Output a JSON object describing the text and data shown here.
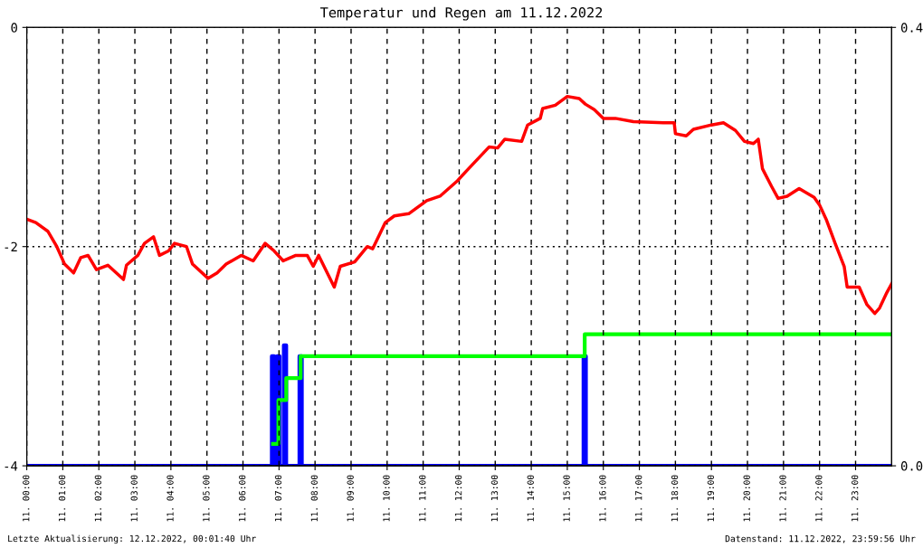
{
  "chart_data": {
    "type": "line",
    "title": "Temperatur und Regen am 11.12.2022",
    "xlim": [
      "2022-12-11T00:00",
      "2022-12-12T00:00"
    ],
    "xticks": [
      {
        "value": "2022-12-11T00:00",
        "label": "11. 00:00"
      },
      {
        "value": "2022-12-11T01:00",
        "label": "11. 01:00"
      },
      {
        "value": "2022-12-11T02:00",
        "label": "11. 02:00"
      },
      {
        "value": "2022-12-11T03:00",
        "label": "11. 03:00"
      },
      {
        "value": "2022-12-11T04:00",
        "label": "11. 04:00"
      },
      {
        "value": "2022-12-11T05:00",
        "label": "11. 05:00"
      },
      {
        "value": "2022-12-11T06:00",
        "label": "11. 06:00"
      },
      {
        "value": "2022-12-11T07:00",
        "label": "11. 07:00"
      },
      {
        "value": "2022-12-11T08:00",
        "label": "11. 08:00"
      },
      {
        "value": "2022-12-11T09:00",
        "label": "11. 09:00"
      },
      {
        "value": "2022-12-11T10:00",
        "label": "11. 10:00"
      },
      {
        "value": "2022-12-11T11:00",
        "label": "11. 11:00"
      },
      {
        "value": "2022-12-11T12:00",
        "label": "11. 12:00"
      },
      {
        "value": "2022-12-11T13:00",
        "label": "11. 13:00"
      },
      {
        "value": "2022-12-11T14:00",
        "label": "11. 14:00"
      },
      {
        "value": "2022-12-11T15:00",
        "label": "11. 15:00"
      },
      {
        "value": "2022-12-11T16:00",
        "label": "11. 16:00"
      },
      {
        "value": "2022-12-11T17:00",
        "label": "11. 17:00"
      },
      {
        "value": "2022-12-11T18:00",
        "label": "11. 18:00"
      },
      {
        "value": "2022-12-11T19:00",
        "label": "11. 19:00"
      },
      {
        "value": "2022-12-11T20:00",
        "label": "11. 20:00"
      },
      {
        "value": "2022-12-11T21:00",
        "label": "11. 21:00"
      },
      {
        "value": "2022-12-11T22:00",
        "label": "11. 22:00"
      },
      {
        "value": "2022-12-11T23:00",
        "label": "11. 23:00"
      }
    ],
    "ylim": [
      -4,
      0
    ],
    "yticks": [
      0,
      -2,
      -4
    ],
    "y2lim": [
      0,
      0.4
    ],
    "y2ticks": [
      {
        "value": 0,
        "label": "0.0"
      },
      {
        "value": 0.4,
        "label": "0.4"
      }
    ],
    "grid": true,
    "series": [
      {
        "color": "#ff0000",
        "x": [
          "2022-12-11T00:00",
          "2022-12-11T00:15",
          "2022-12-11T00:35",
          "2022-12-11T00:50",
          "2022-12-11T01:03",
          "2022-12-11T01:18",
          "2022-12-11T01:30",
          "2022-12-11T01:42",
          "2022-12-11T01:56",
          "2022-12-11T02:15",
          "2022-12-11T02:41",
          "2022-12-11T02:46",
          "2022-12-11T03:05",
          "2022-12-11T03:16",
          "2022-12-11T03:31",
          "2022-12-11T03:41",
          "2022-12-11T03:56",
          "2022-12-11T04:06",
          "2022-12-11T04:26",
          "2022-12-11T04:36",
          "2022-12-11T05:02",
          "2022-12-11T05:17",
          "2022-12-11T05:32",
          "2022-12-11T05:57",
          "2022-12-11T06:17",
          "2022-12-11T06:37",
          "2022-12-11T06:52",
          "2022-12-11T07:07",
          "2022-12-11T07:28",
          "2022-12-11T07:47",
          "2022-12-11T07:57",
          "2022-12-11T08:06",
          "2022-12-11T08:32",
          "2022-12-11T08:42",
          "2022-12-11T09:06",
          "2022-12-11T09:27",
          "2022-12-11T09:36",
          "2022-12-11T09:57",
          "2022-12-11T10:12",
          "2022-12-11T10:36",
          "2022-12-11T11:06",
          "2022-12-11T11:28",
          "2022-12-11T11:57",
          "2022-12-11T12:12",
          "2022-12-11T12:24",
          "2022-12-11T12:50",
          "2022-12-11T13:04",
          "2022-12-11T13:16",
          "2022-12-11T13:44",
          "2022-12-11T13:54",
          "2022-12-11T14:15",
          "2022-12-11T14:19",
          "2022-12-11T14:40",
          "2022-12-11T15:00",
          "2022-12-11T15:20",
          "2022-12-11T15:30",
          "2022-12-11T15:45",
          "2022-12-11T16:00",
          "2022-12-11T16:20",
          "2022-12-11T16:50",
          "2022-12-11T17:40",
          "2022-12-11T17:58",
          "2022-12-11T18:00",
          "2022-12-11T18:18",
          "2022-12-11T18:30",
          "2022-12-11T19:00",
          "2022-12-11T19:20",
          "2022-12-11T19:40",
          "2022-12-11T19:55",
          "2022-12-11T20:10",
          "2022-12-11T20:18",
          "2022-12-11T20:25",
          "2022-12-11T20:40",
          "2022-12-11T20:51",
          "2022-12-11T21:06",
          "2022-12-11T21:26",
          "2022-12-11T21:51",
          "2022-12-11T22:00",
          "2022-12-11T22:11",
          "2022-12-11T22:26",
          "2022-12-11T22:41",
          "2022-12-11T22:46",
          "2022-12-11T23:06",
          "2022-12-11T23:19",
          "2022-12-11T23:32",
          "2022-12-11T23:40",
          "2022-12-11T23:52",
          "2022-12-12T00:00"
        ],
        "values": [
          -1.75,
          -1.78,
          -1.86,
          -2.0,
          -2.16,
          -2.24,
          -2.1,
          -2.08,
          -2.21,
          -2.17,
          -2.3,
          -2.17,
          -2.08,
          -1.97,
          -1.91,
          -2.08,
          -2.04,
          -1.97,
          -2.0,
          -2.16,
          -2.29,
          -2.24,
          -2.16,
          -2.08,
          -2.13,
          -1.97,
          -2.04,
          -2.13,
          -2.08,
          -2.08,
          -2.18,
          -2.08,
          -2.37,
          -2.18,
          -2.14,
          -2.0,
          -2.02,
          -1.78,
          -1.72,
          -1.7,
          -1.58,
          -1.54,
          -1.4,
          -1.31,
          -1.24,
          -1.09,
          -1.1,
          -1.02,
          -1.04,
          -0.89,
          -0.83,
          -0.74,
          -0.71,
          -0.63,
          -0.65,
          -0.7,
          -0.75,
          -0.83,
          -0.83,
          -0.86,
          -0.87,
          -0.87,
          -0.97,
          -0.99,
          -0.93,
          -0.89,
          -0.87,
          -0.94,
          -1.04,
          -1.06,
          -1.02,
          -1.29,
          -1.45,
          -1.56,
          -1.54,
          -1.47,
          -1.55,
          -1.62,
          -1.75,
          -1.97,
          -2.18,
          -2.37,
          -2.37,
          -2.53,
          -2.61,
          -2.56,
          -2.42,
          -2.34
        ]
      },
      {
        "type": "step",
        "axis": "y2",
        "color": "#0000ff",
        "x": [
          "2022-12-11T00:00",
          "2022-12-11T06:48",
          "2022-12-11T06:52",
          "2022-12-11T06:57",
          "2022-12-11T07:01",
          "2022-12-11T07:08",
          "2022-12-11T07:12",
          "2022-12-11T07:34",
          "2022-12-11T07:38",
          "2022-12-11T15:27",
          "2022-12-11T15:31",
          "2022-12-12T00:00"
        ],
        "values": [
          0,
          0.1,
          0,
          0.1,
          0,
          0.11,
          0,
          0.1,
          0,
          0.1,
          0,
          0
        ]
      },
      {
        "type": "step",
        "axis": "y2",
        "color": "#00ff00",
        "x": [
          "2022-12-11T06:50",
          "2022-12-11T06:59",
          "2022-12-11T07:12",
          "2022-12-11T07:36",
          "2022-12-11T15:29",
          "2022-12-12T00:00"
        ],
        "values": [
          0.02,
          0.06,
          0.08,
          0.1,
          0.12,
          0.12
        ]
      }
    ],
    "annotations": [
      "Letzte Aktualisierung: 12.12.2022, 00:01:40 Uhr",
      "Datenstand: 11.12.2022, 23:59:56 Uhr"
    ]
  }
}
